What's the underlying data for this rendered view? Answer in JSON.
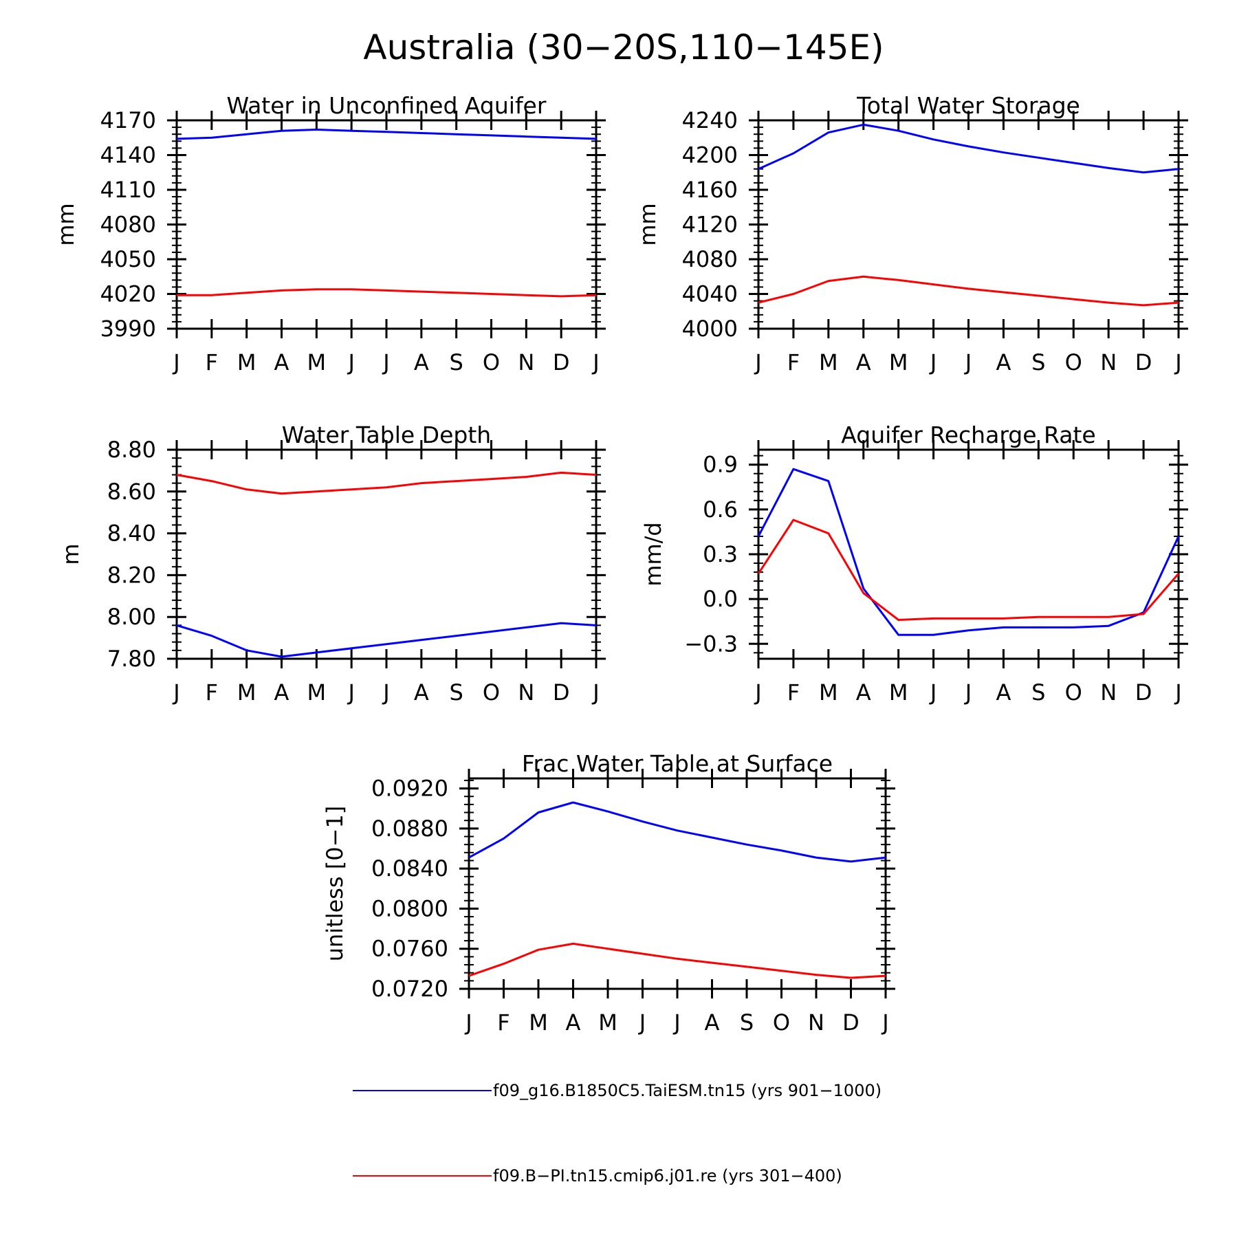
{
  "figure": {
    "title": "Australia (30−20S,110−145E)"
  },
  "colors": {
    "series_blue": "#0000ff",
    "series_red": "#ff0000",
    "axis": "#000000"
  },
  "legend": [
    {
      "label": "f09_g16.B1850C5.TaiESM.tn15 (yrs 901−1000)",
      "color": "#0000ff"
    },
    {
      "label": "f09.B−PI.tn15.cmip6.j01.re (yrs 301−400)",
      "color": "#ff0000"
    }
  ],
  "chart_data": [
    {
      "type": "line",
      "title": "Water in Unconfined Aquifer",
      "ylabel": "mm",
      "categories": [
        "J",
        "F",
        "M",
        "A",
        "M",
        "J",
        "J",
        "A",
        "S",
        "O",
        "N",
        "D",
        "J"
      ],
      "ylim": [
        3990,
        4170
      ],
      "yticks": [
        3990,
        4020,
        4050,
        4080,
        4110,
        4140,
        4170
      ],
      "ytick_labels": [
        "3990",
        "4020",
        "4050",
        "4080",
        "4110",
        "4140",
        "4170"
      ],
      "series": [
        {
          "name": "f09_g16.B1850C5.TaiESM.tn15 (yrs 901−1000)",
          "color": "#0000ff",
          "values": [
            4154,
            4155,
            4158,
            4161,
            4162,
            4161,
            4160,
            4159,
            4158,
            4157,
            4156,
            4155,
            4154
          ]
        },
        {
          "name": "f09.B−PI.tn15.cmip6.j01.re (yrs 301−400)",
          "color": "#ff0000",
          "values": [
            4019,
            4019,
            4021,
            4023,
            4024,
            4024,
            4023,
            4022,
            4021,
            4020,
            4019,
            4018,
            4019
          ]
        }
      ]
    },
    {
      "type": "line",
      "title": "Total Water Storage",
      "ylabel": "mm",
      "categories": [
        "J",
        "F",
        "M",
        "A",
        "M",
        "J",
        "J",
        "A",
        "S",
        "O",
        "N",
        "D",
        "J"
      ],
      "ylim": [
        4000,
        4240
      ],
      "yticks": [
        4000,
        4040,
        4080,
        4120,
        4160,
        4200,
        4240
      ],
      "ytick_labels": [
        "4000",
        "4040",
        "4080",
        "4120",
        "4160",
        "4200",
        "4240"
      ],
      "series": [
        {
          "name": "f09_g16.B1850C5.TaiESM.tn15 (yrs 901−1000)",
          "color": "#0000ff",
          "values": [
            4184,
            4202,
            4226,
            4235,
            4228,
            4218,
            4210,
            4203,
            4197,
            4191,
            4185,
            4180,
            4184
          ]
        },
        {
          "name": "f09.B−PI.tn15.cmip6.j01.re (yrs 301−400)",
          "color": "#ff0000",
          "values": [
            4030,
            4040,
            4055,
            4060,
            4056,
            4051,
            4046,
            4042,
            4038,
            4034,
            4030,
            4027,
            4030
          ]
        }
      ]
    },
    {
      "type": "line",
      "title": "Water Table Depth",
      "ylabel": "m",
      "categories": [
        "J",
        "F",
        "M",
        "A",
        "M",
        "J",
        "J",
        "A",
        "S",
        "O",
        "N",
        "D",
        "J"
      ],
      "ylim": [
        7.8,
        8.8
      ],
      "yticks": [
        7.8,
        8.0,
        8.2,
        8.4,
        8.6,
        8.8
      ],
      "ytick_labels": [
        "7.80",
        "8.00",
        "8.20",
        "8.40",
        "8.60",
        "8.80"
      ],
      "series": [
        {
          "name": "f09_g16.B1850C5.TaiESM.tn15 (yrs 901−1000)",
          "color": "#0000ff",
          "values": [
            7.96,
            7.91,
            7.84,
            7.81,
            7.83,
            7.85,
            7.87,
            7.89,
            7.91,
            7.93,
            7.95,
            7.97,
            7.96
          ]
        },
        {
          "name": "f09.B−PI.tn15.cmip6.j01.re (yrs 301−400)",
          "color": "#ff0000",
          "values": [
            8.68,
            8.65,
            8.61,
            8.59,
            8.6,
            8.61,
            8.62,
            8.64,
            8.65,
            8.66,
            8.67,
            8.69,
            8.68
          ]
        }
      ]
    },
    {
      "type": "line",
      "title": "Aquifer Recharge Rate",
      "ylabel": "mm/d",
      "categories": [
        "J",
        "F",
        "M",
        "A",
        "M",
        "J",
        "J",
        "A",
        "S",
        "O",
        "N",
        "D",
        "J"
      ],
      "ylim": [
        -0.4,
        1.0
      ],
      "yticks": [
        -0.3,
        0.0,
        0.3,
        0.6,
        0.9
      ],
      "ytick_labels": [
        "−0.3",
        "0.0",
        "0.3",
        "0.6",
        "0.9"
      ],
      "series": [
        {
          "name": "f09_g16.B1850C5.TaiESM.tn15 (yrs 901−1000)",
          "color": "#0000ff",
          "values": [
            0.42,
            0.87,
            0.79,
            0.07,
            -0.24,
            -0.24,
            -0.21,
            -0.19,
            -0.19,
            -0.19,
            -0.18,
            -0.09,
            0.42
          ]
        },
        {
          "name": "f09.B−PI.tn15.cmip6.j01.re (yrs 301−400)",
          "color": "#ff0000",
          "values": [
            0.17,
            0.53,
            0.44,
            0.04,
            -0.14,
            -0.13,
            -0.13,
            -0.13,
            -0.12,
            -0.12,
            -0.12,
            -0.1,
            0.17
          ]
        }
      ]
    },
    {
      "type": "line",
      "title": "Frac Water Table at Surface",
      "ylabel": "unitless [0−1]",
      "categories": [
        "J",
        "F",
        "M",
        "A",
        "M",
        "J",
        "J",
        "A",
        "S",
        "O",
        "N",
        "D",
        "J"
      ],
      "ylim": [
        0.072,
        0.093
      ],
      "yticks": [
        0.072,
        0.076,
        0.08,
        0.084,
        0.088,
        0.092
      ],
      "ytick_labels": [
        "0.0720",
        "0.0760",
        "0.0800",
        "0.0840",
        "0.0880",
        "0.0920"
      ],
      "series": [
        {
          "name": "f09_g16.B1850C5.TaiESM.tn15 (yrs 901−1000)",
          "color": "#0000ff",
          "values": [
            0.0851,
            0.087,
            0.0896,
            0.0906,
            0.0897,
            0.0887,
            0.0878,
            0.0871,
            0.0864,
            0.0858,
            0.0851,
            0.0847,
            0.0851
          ]
        },
        {
          "name": "f09.B−PI.tn15.cmip6.j01.re (yrs 301−400)",
          "color": "#ff0000",
          "values": [
            0.0733,
            0.0745,
            0.0759,
            0.0765,
            0.076,
            0.0755,
            0.075,
            0.0746,
            0.0742,
            0.0738,
            0.0734,
            0.0731,
            0.0733
          ]
        }
      ]
    }
  ]
}
